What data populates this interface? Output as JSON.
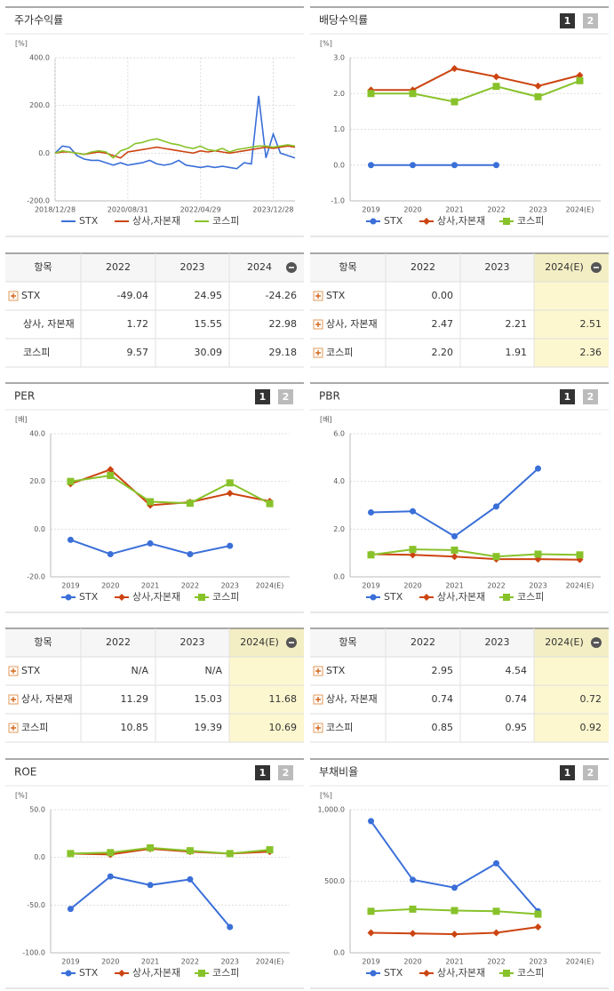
{
  "chart_data": [
    {
      "type": "line",
      "title": "주가수익률",
      "y_label": "[%]",
      "categories": [
        "2018/12/28",
        null,
        null,
        null,
        null,
        null,
        null,
        null,
        null,
        null,
        "2020/08/31",
        null,
        null,
        null,
        null,
        null,
        null,
        null,
        null,
        null,
        "2022/04/29",
        null,
        null,
        null,
        null,
        null,
        null,
        null,
        null,
        null,
        "2023/12/28",
        null,
        null,
        null
      ],
      "series": [
        {
          "name": "STX",
          "color": "#3a6fd8",
          "values": [
            0,
            30,
            25,
            -10,
            -25,
            -30,
            -30,
            -40,
            -50,
            -40,
            -50,
            -45,
            -40,
            -30,
            -45,
            -50,
            -45,
            -30,
            -50,
            -55,
            -60,
            -55,
            -60,
            -55,
            -60,
            -65,
            -40,
            -45,
            240,
            -20,
            80,
            0,
            -10,
            -20
          ]
        },
        {
          "name": "상사,자본재",
          "color": "#cc4411",
          "values": [
            0,
            5,
            5,
            0,
            -5,
            0,
            5,
            0,
            -10,
            -20,
            5,
            10,
            15,
            20,
            25,
            20,
            15,
            10,
            5,
            0,
            10,
            5,
            10,
            5,
            0,
            5,
            10,
            15,
            20,
            25,
            20,
            25,
            30,
            25
          ]
        },
        {
          "name": "코스피",
          "color": "#88c22a",
          "values": [
            0,
            10,
            5,
            0,
            -5,
            5,
            10,
            5,
            -20,
            10,
            20,
            40,
            45,
            55,
            60,
            50,
            40,
            35,
            25,
            20,
            30,
            15,
            10,
            20,
            5,
            15,
            20,
            25,
            30,
            30,
            25,
            30,
            35,
            30
          ]
        }
      ],
      "ylim": [
        -200,
        400
      ],
      "yticks": [
        {
          "value": 400,
          "label": "400.0"
        },
        {
          "value": 200,
          "label": "200.0"
        },
        {
          "value": 0,
          "label": "0.0"
        },
        {
          "value": -200,
          "label": "-200.0"
        }
      ]
    },
    {
      "type": "line",
      "title": "배당수익률",
      "y_label": "[%]",
      "buttons": [
        "1",
        "2"
      ],
      "categories": [
        "2019",
        "2020",
        "2021",
        "2022",
        "2023",
        "2024(E)"
      ],
      "series": [
        {
          "name": "STX",
          "color": "#3a6fd8",
          "marker": "circle",
          "values": [
            0,
            0,
            0,
            0,
            null,
            null
          ]
        },
        {
          "name": "상사,자본재",
          "color": "#cc4411",
          "marker": "diamond",
          "values": [
            2.1,
            2.1,
            2.7,
            2.47,
            2.21,
            2.51
          ]
        },
        {
          "name": "코스피",
          "color": "#88c22a",
          "marker": "square",
          "values": [
            2.0,
            2.0,
            1.77,
            2.2,
            1.91,
            2.36
          ]
        }
      ],
      "ylim": [
        -1,
        3
      ],
      "yticks": [
        {
          "value": 3,
          "label": "3.0"
        },
        {
          "value": 2,
          "label": "2.0"
        },
        {
          "value": 1,
          "label": "1.0"
        },
        {
          "value": 0,
          "label": "0.0"
        },
        {
          "value": -1,
          "label": "-1.0"
        }
      ]
    },
    {
      "type": "line",
      "title": "PER",
      "y_label": "[배]",
      "buttons": [
        "1",
        "2"
      ],
      "categories": [
        "2019",
        "2020",
        "2021",
        "2022",
        "2023",
        "2024(E)"
      ],
      "series": [
        {
          "name": "STX",
          "color": "#3a6fd8",
          "marker": "circle",
          "values": [
            -4.5,
            -10.5,
            -6,
            -10.5,
            -7,
            null
          ]
        },
        {
          "name": "상사,자본재",
          "color": "#cc4411",
          "marker": "diamond",
          "values": [
            19,
            25,
            10,
            11.29,
            15.03,
            11.68
          ]
        },
        {
          "name": "코스피",
          "color": "#88c22a",
          "marker": "square",
          "values": [
            20,
            22.5,
            11.5,
            10.85,
            19.39,
            10.69
          ]
        }
      ],
      "ylim": [
        -20,
        40
      ],
      "yticks": [
        {
          "value": 40,
          "label": "40.0"
        },
        {
          "value": 20,
          "label": "20.0"
        },
        {
          "value": 0,
          "label": "0.0"
        },
        {
          "value": -20,
          "label": "-20.0"
        }
      ]
    },
    {
      "type": "line",
      "title": "PBR",
      "y_label": "[배]",
      "buttons": [
        "1",
        "2"
      ],
      "categories": [
        "2019",
        "2020",
        "2021",
        "2022",
        "2023",
        "2024(E)"
      ],
      "series": [
        {
          "name": "STX",
          "color": "#3a6fd8",
          "marker": "circle",
          "values": [
            2.7,
            2.75,
            1.7,
            2.95,
            4.54,
            null
          ]
        },
        {
          "name": "상사,자본재",
          "color": "#cc4411",
          "marker": "diamond",
          "values": [
            0.95,
            0.92,
            0.85,
            0.74,
            0.74,
            0.72
          ]
        },
        {
          "name": "코스피",
          "color": "#88c22a",
          "marker": "square",
          "values": [
            0.92,
            1.15,
            1.12,
            0.85,
            0.95,
            0.92
          ]
        }
      ],
      "ylim": [
        0,
        6
      ],
      "yticks": [
        {
          "value": 6,
          "label": "6.0"
        },
        {
          "value": 4,
          "label": "4.0"
        },
        {
          "value": 2,
          "label": "2.0"
        },
        {
          "value": 0,
          "label": "0.0"
        }
      ]
    },
    {
      "type": "line",
      "title": "ROE",
      "y_label": "[%]",
      "buttons": [
        "1",
        "2"
      ],
      "categories": [
        "2019",
        "2020",
        "2021",
        "2022",
        "2023",
        "2024(E)"
      ],
      "series": [
        {
          "name": "STX",
          "color": "#3a6fd8",
          "marker": "circle",
          "values": [
            -54,
            -20,
            -29,
            -23,
            -73,
            null
          ]
        },
        {
          "name": "상사,자본재",
          "color": "#cc4411",
          "marker": "diamond",
          "values": [
            4,
            3,
            9,
            6,
            4,
            6
          ]
        },
        {
          "name": "코스피",
          "color": "#88c22a",
          "marker": "square",
          "values": [
            4,
            5,
            10,
            7,
            4,
            8
          ]
        }
      ],
      "ylim": [
        -100,
        50
      ],
      "yticks": [
        {
          "value": 50,
          "label": "50.0"
        },
        {
          "value": 0,
          "label": "0.0"
        },
        {
          "value": -50,
          "label": "-50.0"
        },
        {
          "value": -100,
          "label": "-100.0"
        }
      ]
    },
    {
      "type": "line",
      "title": "부채비율",
      "y_label": "[%]",
      "buttons": [
        "1",
        "2"
      ],
      "categories": [
        "2019",
        "2020",
        "2021",
        "2022",
        "2023",
        "2024(E)"
      ],
      "series": [
        {
          "name": "STX",
          "color": "#3a6fd8",
          "marker": "circle",
          "values": [
            920,
            510,
            455,
            625,
            290,
            null
          ]
        },
        {
          "name": "상사,자본재",
          "color": "#cc4411",
          "marker": "diamond",
          "values": [
            140,
            135,
            130,
            140,
            180,
            null
          ]
        },
        {
          "name": "코스피",
          "color": "#88c22a",
          "marker": "square",
          "values": [
            290,
            305,
            295,
            290,
            270,
            null
          ]
        }
      ],
      "ylim": [
        0,
        1000
      ],
      "yticks": [
        {
          "value": 1000,
          "label": "1,000.0"
        },
        {
          "value": 500,
          "label": "500.0"
        },
        {
          "value": 0,
          "label": "0.0"
        }
      ]
    }
  ],
  "tables": [
    {
      "header": [
        "항목",
        "2022",
        "2023",
        "2024"
      ],
      "expandable": [
        true,
        false,
        false
      ],
      "highlight_column": null,
      "rows": [
        [
          "STX",
          "-49.04",
          "24.95",
          "-24.26"
        ],
        [
          "상사, 자본재",
          "1.72",
          "15.55",
          "22.98"
        ],
        [
          "코스피",
          "9.57",
          "30.09",
          "29.18"
        ]
      ]
    },
    {
      "header": [
        "항목",
        "2022",
        "2023",
        "2024(E)"
      ],
      "expandable": [
        true,
        true,
        true
      ],
      "highlight_column": 3,
      "rows": [
        [
          "STX",
          "0.00",
          null,
          null
        ],
        [
          "상사, 자본재",
          "2.47",
          "2.21",
          "2.51"
        ],
        [
          "코스피",
          "2.20",
          "1.91",
          "2.36"
        ]
      ]
    },
    {
      "header": [
        "항목",
        "2022",
        "2023",
        "2024(E)"
      ],
      "expandable": [
        true,
        true,
        true
      ],
      "highlight_column": 3,
      "rows": [
        [
          "STX",
          "N/A",
          "N/A",
          null
        ],
        [
          "상사, 자본재",
          "11.29",
          "15.03",
          "11.68"
        ],
        [
          "코스피",
          "10.85",
          "19.39",
          "10.69"
        ]
      ]
    },
    {
      "header": [
        "항목",
        "2022",
        "2023",
        "2024(E)"
      ],
      "expandable": [
        true,
        true,
        true
      ],
      "highlight_column": 3,
      "rows": [
        [
          "STX",
          "2.95",
          "4.54",
          null
        ],
        [
          "상사, 자본재",
          "0.74",
          "0.74",
          "0.72"
        ],
        [
          "코스피",
          "0.85",
          "0.95",
          "0.92"
        ]
      ]
    }
  ]
}
